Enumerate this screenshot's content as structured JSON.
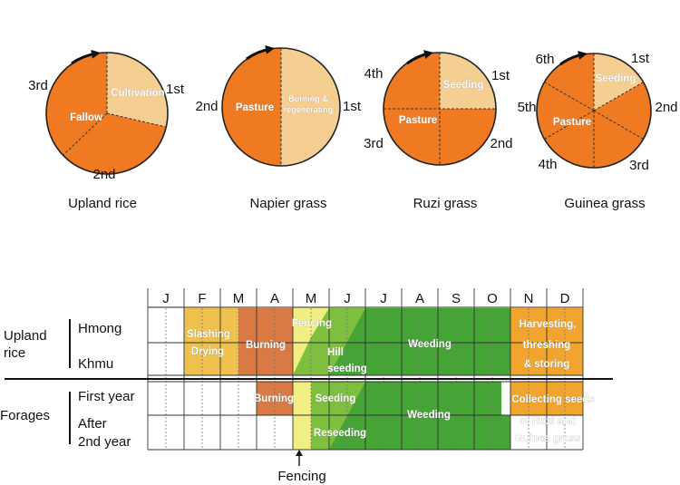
{
  "pies": [
    {
      "caption": "Upland rice",
      "inner_labels": [
        "Cultivation",
        "Fallow"
      ],
      "outer_labels": [
        "1st",
        "2nd",
        "3rd"
      ]
    },
    {
      "caption": "Napier grass",
      "inner_labels": [
        "Pasture",
        "Burning &",
        "regenerating"
      ],
      "outer_labels": [
        "1st",
        "2nd"
      ]
    },
    {
      "caption": "Ruzi grass",
      "inner_labels": [
        "Seeding",
        "Pasture"
      ],
      "outer_labels": [
        "1st",
        "2nd",
        "3rd",
        "4th"
      ]
    },
    {
      "caption": "Guinea grass",
      "inner_labels": [
        "Seeding",
        "Pasture"
      ],
      "outer_labels": [
        "1st",
        "2nd",
        "3rd",
        "4th",
        "5th",
        "6th"
      ]
    }
  ],
  "calendar": {
    "months": [
      "J",
      "F",
      "M",
      "A",
      "M",
      "J",
      "J",
      "A",
      "S",
      "O",
      "N",
      "D"
    ],
    "groups": [
      {
        "label_lines": [
          "Upland",
          "rice"
        ],
        "rows": [
          "Hmong",
          "Khmu"
        ]
      },
      {
        "label_lines": [
          "Forages"
        ],
        "rows": [
          "First year",
          "After",
          "2nd year"
        ]
      }
    ],
    "activities": {
      "slashing": "Slashing",
      "drying": "Drying",
      "burning_rice": "Burning",
      "fencing_top": "Fencing",
      "hill": "Hill",
      "seeding_hill": "seeding",
      "weeding_rice": "Weeding",
      "harvest_1": "Harvesting,",
      "harvest_2": "threshing",
      "harvest_3": "& storing",
      "burning_forage": "Burning",
      "seeding_forage": "Seeding",
      "reseeding": "Reseeding",
      "weeding_forage": "Weeding",
      "collect_1": "Collecting seeds",
      "collect_2": "of Ruzi and",
      "collect_3": "Guinea grass"
    },
    "fencing_marker": "Fencing"
  },
  "colors": {
    "orange": "#ef7a22",
    "pale_orange": "#f5cf92",
    "burning": "#d97a45",
    "straw": "#efc04d",
    "pale_yellow": "#f1ef84",
    "yellow_green": "#b7d847",
    "light_green": "#7fbf3f",
    "green": "#46a336",
    "harvest": "#f2a52e"
  }
}
